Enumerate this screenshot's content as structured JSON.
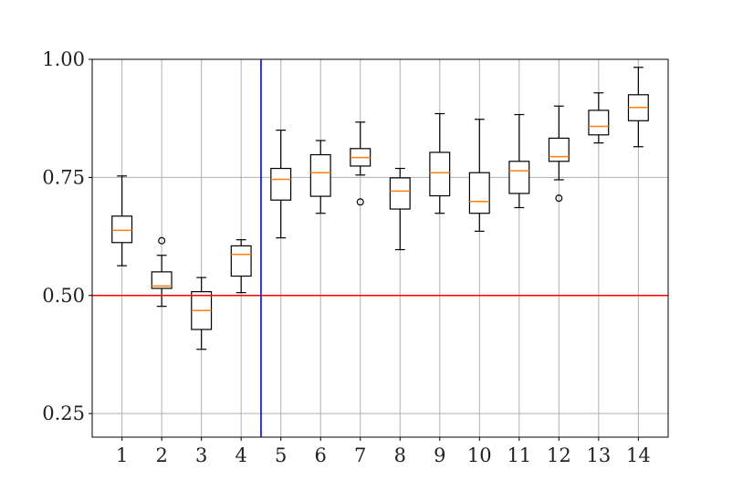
{
  "chart_data": {
    "type": "box",
    "title": "",
    "xlabel": "",
    "ylabel": "",
    "categories": [
      "1",
      "2",
      "3",
      "4",
      "5",
      "6",
      "7",
      "8",
      "9",
      "10",
      "11",
      "12",
      "13",
      "14"
    ],
    "ylim": [
      0.2,
      1.0
    ],
    "yticks": [
      0.25,
      0.5,
      0.75,
      1.0
    ],
    "ytick_labels": [
      "0.25",
      "0.50",
      "0.75",
      "1.00"
    ],
    "grid": true,
    "boxes": [
      {
        "category": "1",
        "whislo": 0.563,
        "q1": 0.612,
        "med": 0.638,
        "q3": 0.668,
        "whishi": 0.753,
        "fliers": []
      },
      {
        "category": "2",
        "whislo": 0.477,
        "q1": 0.515,
        "med": 0.52,
        "q3": 0.55,
        "whishi": 0.585,
        "fliers": [
          0.616
        ]
      },
      {
        "category": "3",
        "whislo": 0.386,
        "q1": 0.428,
        "med": 0.468,
        "q3": 0.508,
        "whishi": 0.538,
        "fliers": []
      },
      {
        "category": "4",
        "whislo": 0.506,
        "q1": 0.541,
        "med": 0.587,
        "q3": 0.605,
        "whishi": 0.618,
        "fliers": []
      },
      {
        "category": "5",
        "whislo": 0.622,
        "q1": 0.702,
        "med": 0.746,
        "q3": 0.769,
        "whishi": 0.85,
        "fliers": []
      },
      {
        "category": "6",
        "whislo": 0.674,
        "q1": 0.71,
        "med": 0.76,
        "q3": 0.798,
        "whishi": 0.828,
        "fliers": []
      },
      {
        "category": "7",
        "whislo": 0.755,
        "q1": 0.774,
        "med": 0.792,
        "q3": 0.811,
        "whishi": 0.867,
        "fliers": [
          0.698
        ]
      },
      {
        "category": "8",
        "whislo": 0.597,
        "q1": 0.683,
        "med": 0.721,
        "q3": 0.749,
        "whishi": 0.769,
        "fliers": []
      },
      {
        "category": "9",
        "whislo": 0.674,
        "q1": 0.711,
        "med": 0.76,
        "q3": 0.803,
        "whishi": 0.885,
        "fliers": []
      },
      {
        "category": "10",
        "whislo": 0.636,
        "q1": 0.674,
        "med": 0.699,
        "q3": 0.76,
        "whishi": 0.873,
        "fliers": []
      },
      {
        "category": "11",
        "whislo": 0.686,
        "q1": 0.716,
        "med": 0.764,
        "q3": 0.784,
        "whishi": 0.883,
        "fliers": []
      },
      {
        "category": "12",
        "whislo": 0.745,
        "q1": 0.784,
        "med": 0.794,
        "q3": 0.833,
        "whishi": 0.901,
        "fliers": [
          0.706
        ]
      },
      {
        "category": "13",
        "whislo": 0.823,
        "q1": 0.84,
        "med": 0.858,
        "q3": 0.892,
        "whishi": 0.929,
        "fliers": []
      },
      {
        "category": "14",
        "whislo": 0.815,
        "q1": 0.87,
        "med": 0.898,
        "q3": 0.925,
        "whishi": 0.983,
        "fliers": []
      }
    ],
    "reference_lines": [
      {
        "orientation": "horizontal",
        "y": 0.5,
        "color": "#ff0000"
      },
      {
        "orientation": "vertical",
        "x": 4.5,
        "color": "#0000ff"
      }
    ],
    "colors": {
      "median": "#ff7f0e",
      "box": "#000000",
      "grid": "#b0b0b0"
    }
  }
}
